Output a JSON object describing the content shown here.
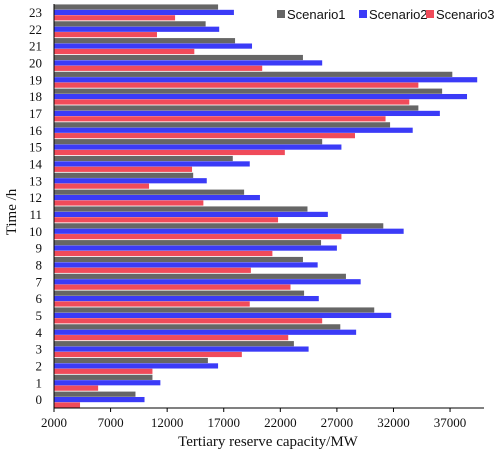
{
  "chart_data": {
    "type": "bar",
    "orientation": "horizontal",
    "xlabel": "Tertiary reserve capacity/MW",
    "ylabel": "Time /h",
    "xlim": [
      2000,
      40000
    ],
    "xticks": [
      2000,
      7000,
      12000,
      17000,
      22000,
      27000,
      32000,
      37000
    ],
    "legend_position": "top-right",
    "grid": false,
    "categories": [
      "0",
      "1",
      "2",
      "3",
      "4",
      "5",
      "6",
      "7",
      "8",
      "9",
      "10",
      "11",
      "12",
      "13",
      "14",
      "15",
      "16",
      "17",
      "18",
      "19",
      "20",
      "21",
      "22",
      "23"
    ],
    "series": [
      {
        "name": "Scenario1",
        "color": "#666666",
        "values": [
          9200,
          10700,
          15600,
          23200,
          27300,
          30300,
          24100,
          27800,
          24000,
          25600,
          31100,
          24400,
          18800,
          14300,
          17800,
          25700,
          31700,
          34200,
          36300,
          37200,
          24000,
          18000,
          15400,
          16500
        ]
      },
      {
        "name": "Scenario2",
        "color": "#3b3bf7",
        "values": [
          10000,
          11400,
          16500,
          24500,
          28700,
          31800,
          25400,
          29100,
          25300,
          27000,
          32900,
          26200,
          20200,
          15500,
          19300,
          27400,
          33700,
          36100,
          38500,
          39400,
          25700,
          19500,
          16600,
          17900
        ]
      },
      {
        "name": "Scenario3",
        "color": "#f04b5a",
        "values": [
          4300,
          5900,
          10700,
          18600,
          22700,
          25700,
          19300,
          22900,
          19400,
          21300,
          27400,
          21800,
          15200,
          10400,
          14200,
          22400,
          28600,
          31300,
          33400,
          34200,
          20400,
          14400,
          11100,
          12700
        ]
      }
    ]
  }
}
